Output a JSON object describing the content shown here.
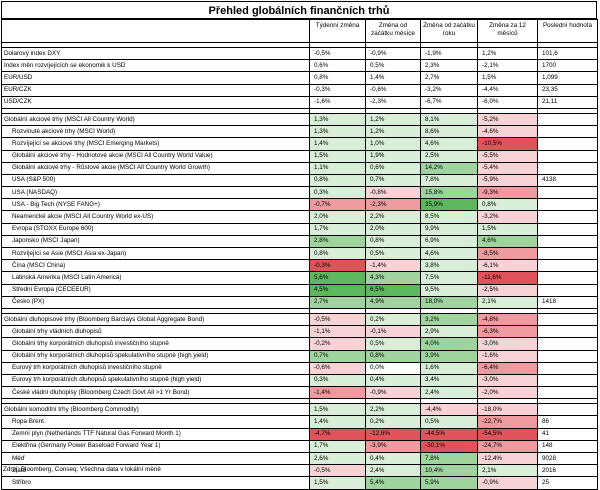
{
  "title": "Přehled globálních finančních trhů",
  "source": "Zdroj: Bloomberg, Conseq; Všechna data v lokální měně",
  "colors": {
    "g3": "#5cb85c",
    "g2": "#9fd49f",
    "g1": "#d8eed8",
    "r3": "#e0535a",
    "r2": "#ee9a9e",
    "r1": "#f8d3d5",
    "none": "#ffffff"
  },
  "headers": {
    "name": "",
    "w": "Týdenní změna",
    "m": "Změna od začátku měsíce",
    "y": "Změna od začátku roku",
    "t": "Změna za 12 měsíců",
    "last": "Poslední hodnota"
  },
  "groups": [
    {
      "rows": [
        {
          "name": "Dolarový index DXY",
          "ind": false,
          "w": "-0,5%",
          "m": "-0,9%",
          "y": "-1,9%",
          "t": "1,2%",
          "last": "101,6",
          "cw": "none",
          "cm": "none",
          "cy": "none",
          "ct": "none"
        },
        {
          "name": "Index měn rozvíjejících se ekonomik k USD",
          "ind": false,
          "w": "0,6%",
          "m": "0,5%",
          "y": "2,3%",
          "t": "-2,1%",
          "last": "1700",
          "cw": "none",
          "cm": "none",
          "cy": "none",
          "ct": "none"
        },
        {
          "name": "EUR/USD",
          "ind": false,
          "w": "0,8%",
          "m": "1,4%",
          "y": "2,7%",
          "t": "1,5%",
          "last": "1,099",
          "cw": "none",
          "cm": "none",
          "cy": "none",
          "ct": "none"
        },
        {
          "name": "EUR/CZK",
          "ind": false,
          "w": "-0,3%",
          "m": "-0,6%",
          "y": "-3,2%",
          "t": "-4,4%",
          "last": "23,35",
          "cw": "none",
          "cm": "none",
          "cy": "none",
          "ct": "none"
        },
        {
          "name": "USD/CZK",
          "ind": false,
          "w": "-1,6%",
          "m": "-2,3%",
          "y": "-6,7%",
          "t": "-6,0%",
          "last": "21,11",
          "cw": "none",
          "cm": "none",
          "cy": "none",
          "ct": "none"
        }
      ]
    },
    {
      "rows": [
        {
          "name": "Globální akciové trhy (MSCI All Country World)",
          "ind": false,
          "w": "1,3%",
          "m": "1,2%",
          "y": "8,1%",
          "t": "-5,2%",
          "last": "",
          "cw": "g1",
          "cm": "g1",
          "cy": "g1",
          "ct": "r1"
        },
        {
          "name": "Rozvinuté akciové trhy (MSCI World)",
          "ind": true,
          "w": "1,3%",
          "m": "1,2%",
          "y": "8,6%",
          "t": "-4,6%",
          "last": "",
          "cw": "g1",
          "cm": "g1",
          "cy": "g1",
          "ct": "r1"
        },
        {
          "name": "Rozvíjející se akciové trhy (MSCI Emerging Markets)",
          "ind": true,
          "w": "1,4%",
          "m": "1,0%",
          "y": "4,6%",
          "t": "-10,5%",
          "last": "",
          "cw": "g1",
          "cm": "g1",
          "cy": "g1",
          "ct": "r3"
        },
        {
          "name": "Globální akciové trhy - Hodnotové akcie (MSCI All Country World Value)",
          "ind": true,
          "w": "1,5%",
          "m": "1,9%",
          "y": "2,5%",
          "t": "-5,5%",
          "last": "",
          "cw": "g1",
          "cm": "g1",
          "cy": "g1",
          "ct": "r1"
        },
        {
          "name": "Globální akciové trhy - Růstové akcie (MSCI All Country World Growth)",
          "ind": true,
          "w": "1,1%",
          "m": "0,6%",
          "y": "14,2%",
          "t": "-5,4%",
          "last": "",
          "cw": "g1",
          "cm": "g1",
          "cy": "g2",
          "ct": "r1"
        },
        {
          "name": "USA (S&P 500)",
          "ind": true,
          "w": "0,8%",
          "m": "0,7%",
          "y": "7,8%",
          "t": "-5,9%",
          "last": "4138",
          "cw": "g1",
          "cm": "g1",
          "cy": "g1",
          "ct": "r1"
        },
        {
          "name": "USA (NASDAQ)",
          "ind": true,
          "w": "0,3%",
          "m": "-0,8%",
          "y": "15,8%",
          "t": "-9,3%",
          "last": "",
          "cw": "g1",
          "cm": "r1",
          "cy": "g2",
          "ct": "r2"
        },
        {
          "name": "USA - Big Tech (NYSE FANG+)",
          "ind": true,
          "w": "-0,7%",
          "m": "-2,3%",
          "y": "35,9%",
          "t": "0,8%",
          "last": "",
          "cw": "r2",
          "cm": "r2",
          "cy": "g3",
          "ct": "g1"
        },
        {
          "name": "Neamerické akcie (MSCI All Country World ex-US)",
          "ind": true,
          "w": "2,0%",
          "m": "2,2%",
          "y": "8,5%",
          "t": "-3,2%",
          "last": "",
          "cw": "g1",
          "cm": "g1",
          "cy": "g1",
          "ct": "r1"
        },
        {
          "name": "Evropa (STOXX Europe 600)",
          "ind": true,
          "w": "1,7%",
          "m": "2,0%",
          "y": "9,9%",
          "t": "1,5%",
          "last": "",
          "cw": "g1",
          "cm": "g1",
          "cy": "g1",
          "ct": "g1"
        },
        {
          "name": "Japonsko (MSCI Japan)",
          "ind": true,
          "w": "2,8%",
          "m": "0,8%",
          "y": "6,9%",
          "t": "4,6%",
          "last": "",
          "cw": "g2",
          "cm": "g1",
          "cy": "g1",
          "ct": "g2"
        },
        {
          "name": "Rozvíjející se Asie (MSCI Asia ex-Japan)",
          "ind": true,
          "w": "0,8%",
          "m": "0,5%",
          "y": "4,6%",
          "t": "-8,5%",
          "last": "",
          "cw": "g1",
          "cm": "g1",
          "cy": "g1",
          "ct": "r2"
        },
        {
          "name": "Čína (MSCI China)",
          "ind": true,
          "w": "-0,3%",
          "m": "-1,4%",
          "y": "3,8%",
          "t": "-6,1%",
          "last": "",
          "cw": "r3",
          "cm": "r1",
          "cy": "g1",
          "ct": "r1"
        },
        {
          "name": "Latinská Amerika (MSCI Latin America)",
          "ind": true,
          "w": "5,6%",
          "m": "4,3%",
          "y": "7,5%",
          "t": "-11,6%",
          "last": "",
          "cw": "g3",
          "cm": "g2",
          "cy": "g1",
          "ct": "r3"
        },
        {
          "name": "Střední Evropa (CECEEUR)",
          "ind": true,
          "w": "4,5%",
          "m": "6,5%",
          "y": "9,5%",
          "t": "-2,5%",
          "last": "",
          "cw": "g3",
          "cm": "g3",
          "cy": "g1",
          "ct": "r1"
        },
        {
          "name": "Česko (PX)",
          "ind": true,
          "w": "2,7%",
          "m": "4,9%",
          "y": "18,0%",
          "t": "2,1%",
          "last": "1418",
          "cw": "g2",
          "cm": "g2",
          "cy": "g2",
          "ct": "g1"
        }
      ]
    },
    {
      "rows": [
        {
          "name": "Globální dluhopisové trhy (Bloomberg Barclays Global Aggregate Bond)",
          "ind": false,
          "w": "-0,5%",
          "m": "0,2%",
          "y": "3,2%",
          "t": "-4,8%",
          "last": "",
          "cw": "r1",
          "cm": "g1",
          "cy": "g2",
          "ct": "r2"
        },
        {
          "name": "Globální trhy vládních dluhopisů",
          "ind": true,
          "w": "-1,1%",
          "m": "-0,1%",
          "y": "2,9%",
          "t": "-6,3%",
          "last": "",
          "cw": "r1",
          "cm": "r1",
          "cy": "g1",
          "ct": "r2"
        },
        {
          "name": "Globální trhy korporátních dluhopisů investičního stupně",
          "ind": true,
          "w": "-0,2%",
          "m": "0,5%",
          "y": "4,0%",
          "t": "-3,0%",
          "last": "",
          "cw": "r1",
          "cm": "g1",
          "cy": "g2",
          "ct": "r1"
        },
        {
          "name": "Globální trhy korporátních dluhopisů spekulativního stupně (high yield)",
          "ind": true,
          "w": "0,7%",
          "m": "0,8%",
          "y": "3,9%",
          "t": "-1,6%",
          "last": "",
          "cw": "g2",
          "cm": "g2",
          "cy": "g2",
          "ct": "r1"
        },
        {
          "name": "Eurový trh korporátních dluhopisů investičního stupně",
          "ind": true,
          "w": "-0,6%",
          "m": "0,0%",
          "y": "1,6%",
          "t": "-6,4%",
          "last": "",
          "cw": "r1",
          "cm": "none",
          "cy": "g1",
          "ct": "r2"
        },
        {
          "name": "Eurový trh korporátních dluhopisů spekulativního stupně (high yield)",
          "ind": true,
          "w": "0,3%",
          "m": "0,4%",
          "y": "3,4%",
          "t": "-3,0%",
          "last": "",
          "cw": "g1",
          "cm": "g1",
          "cy": "g1",
          "ct": "r1"
        },
        {
          "name": "České vládní dluhopisy (Bloomberg Czech Govt All >1 Yr Bond)",
          "ind": true,
          "w": "-1,4%",
          "m": "-0,9%",
          "y": "2,4%",
          "t": "-2,0%",
          "last": "",
          "cw": "r2",
          "cm": "r1",
          "cy": "g1",
          "ct": "r1"
        }
      ]
    },
    {
      "rows": [
        {
          "name": "Globální komoditní trhy (Bloomberg Commodity)",
          "ind": false,
          "w": "1,5%",
          "m": "2,2%",
          "y": "-4,4%",
          "t": "-18,0%",
          "last": "",
          "cw": "g1",
          "cm": "g1",
          "cy": "r1",
          "ct": "r1"
        },
        {
          "name": "Ropa Brent",
          "ind": true,
          "w": "1,4%",
          "m": "0,2%",
          "y": "0,5%",
          "t": "-22,7%",
          "last": "86",
          "cw": "g1",
          "cm": "g1",
          "cy": "g1",
          "ct": "r2"
        },
        {
          "name": "Zemní plyn (Netherlands TTF Natural Gas Forward Month 1)",
          "ind": true,
          "w": "-4,7%",
          "m": "-12,6%",
          "y": "-44,5%",
          "t": "-54,5%",
          "last": "41",
          "cw": "r3",
          "cm": "r3",
          "cy": "r3",
          "ct": "r3"
        },
        {
          "name": "Elektřina (Germany Power Baseload Forward Year 1)",
          "ind": true,
          "w": "1,7%",
          "m": "-3,9%",
          "y": "-30,1%",
          "t": "-24,7%",
          "last": "148",
          "cw": "g1",
          "cm": "r2",
          "cy": "r3",
          "ct": "r2"
        },
        {
          "name": "Měď",
          "ind": true,
          "w": "2,6%",
          "m": "0,4%",
          "y": "7,8%",
          "t": "-12,4%",
          "last": "9028",
          "cw": "g1",
          "cm": "g1",
          "cy": "g2",
          "ct": "r1"
        },
        {
          "name": "Zlato",
          "ind": true,
          "w": "-0,5%",
          "m": "2,4%",
          "y": "10,4%",
          "t": "2,1%",
          "last": "2016",
          "cw": "r1",
          "cm": "g1",
          "cy": "g2",
          "ct": "g1"
        },
        {
          "name": "Stříbro",
          "ind": true,
          "w": "1,5%",
          "m": "5,4%",
          "y": "5,9%",
          "t": "-0,9%",
          "last": "25",
          "cw": "g1",
          "cm": "g2",
          "cy": "g2",
          "ct": "r1"
        }
      ]
    }
  ]
}
